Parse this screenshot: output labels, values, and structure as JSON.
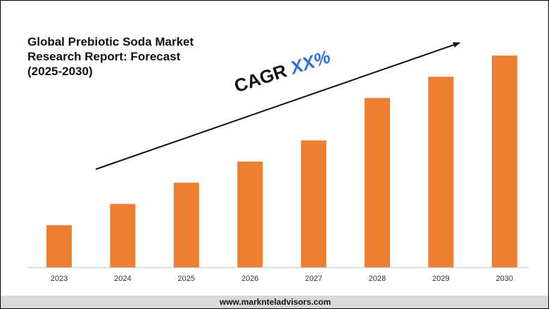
{
  "title_lines": [
    "Global Prebiotic Soda Market",
    "Research Report: Forecast",
    "(2025-2030)"
  ],
  "cagr": {
    "label": "CAGR",
    "value": "XX%"
  },
  "footer": {
    "url": "www.marknteladvisors.com"
  },
  "colors": {
    "bar": "#ed7d31",
    "cagr_value": "#2f6fd6",
    "axis": "#bfbfbf",
    "text": "#111111",
    "footer_bg": "#d9d9d9"
  },
  "chart_data": {
    "type": "bar",
    "title": "Global Prebiotic Soda Market Research Report: Forecast (2025-2030)",
    "categories": [
      "2023",
      "2024",
      "2025",
      "2026",
      "2027",
      "2028",
      "2029",
      "2030"
    ],
    "values": [
      1,
      1.5,
      2,
      2.5,
      3,
      4,
      4.5,
      5
    ],
    "xlabel": "",
    "ylabel": "",
    "ylim": [
      0,
      5.3
    ],
    "grid": false,
    "legend": "none",
    "annotations": [
      "CAGR XX%"
    ]
  }
}
